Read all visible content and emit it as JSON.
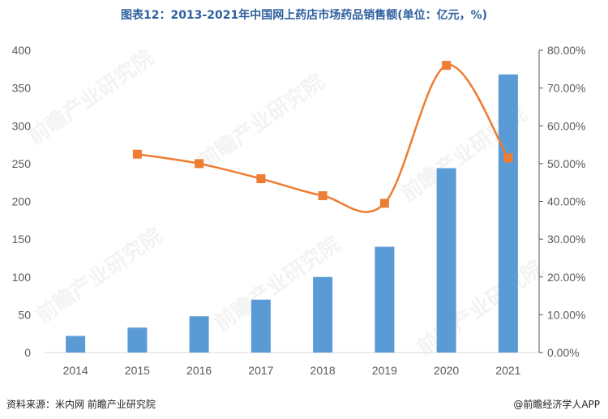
{
  "chart_data": {
    "type": "bar+line",
    "title": "图表12：2013-2021年中国网上药店市场药品销售额(单位：亿元，%)",
    "categories": [
      "2014",
      "2015",
      "2016",
      "2017",
      "2018",
      "2019",
      "2020",
      "2021"
    ],
    "series": [
      {
        "type": "bar",
        "axis": "left",
        "values": [
          22,
          33,
          48,
          70,
          100,
          140,
          244,
          368
        ]
      },
      {
        "type": "line",
        "axis": "right",
        "values": [
          null,
          52.5,
          50.0,
          46.0,
          41.5,
          39.5,
          76.0,
          51.5
        ]
      }
    ],
    "y_left": {
      "min": 0,
      "max": 400,
      "ticks": [
        0,
        50,
        100,
        150,
        200,
        250,
        300,
        350,
        400
      ]
    },
    "y_right": {
      "min": 0,
      "max": 80,
      "ticks": [
        "0.00%",
        "10.00%",
        "20.00%",
        "30.00%",
        "40.00%",
        "50.00%",
        "60.00%",
        "70.00%",
        "80.00%"
      ]
    },
    "colors": {
      "bar": "#5b9bd5",
      "line": "#ed7d31",
      "marker": "#ed7d31"
    },
    "grid": false,
    "legend": "none"
  },
  "footer": {
    "source": "资料来源：米内网 前瞻产业研究院",
    "brand": "@前瞻经济学人APP"
  },
  "watermark": "前瞻产业研究院"
}
